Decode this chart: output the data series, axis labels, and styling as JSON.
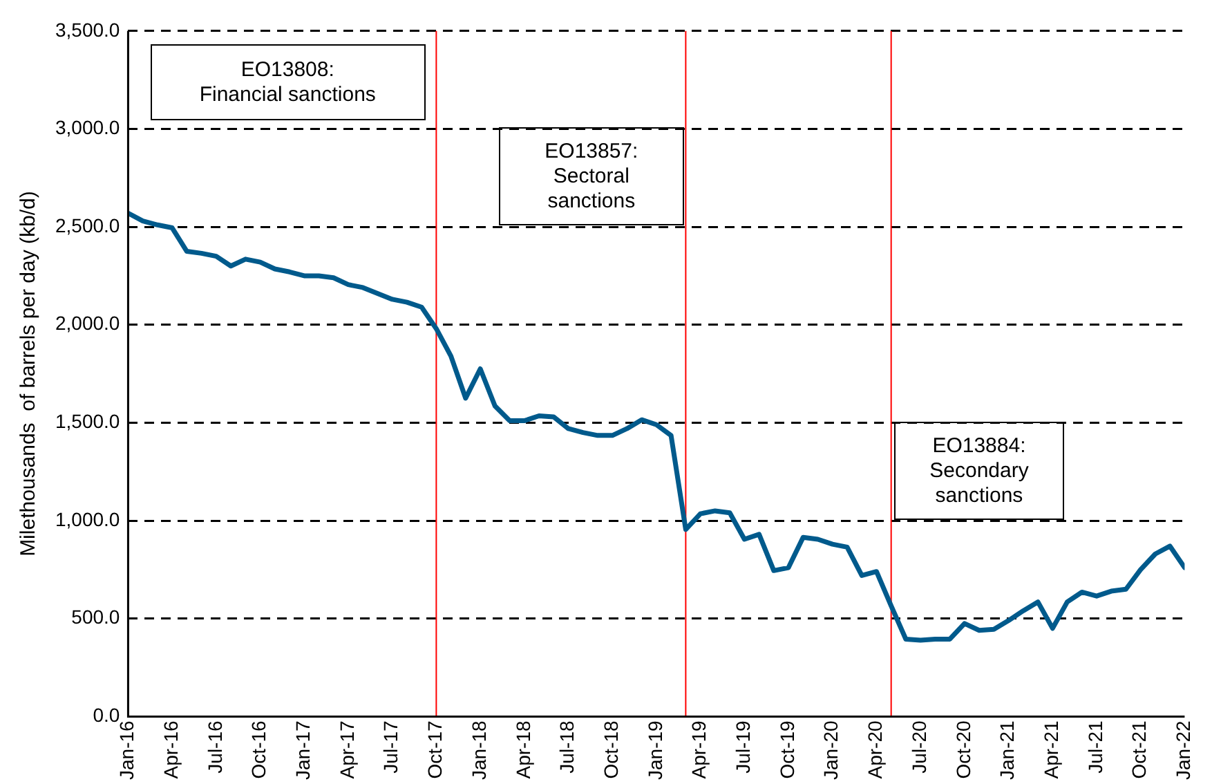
{
  "chart_data": {
    "type": "line",
    "ylabel": "Milethousands  of barrels per day (kb/d)",
    "x": [
      "2016-01",
      "2016-02",
      "2016-03",
      "2016-04",
      "2016-05",
      "2016-06",
      "2016-07",
      "2016-08",
      "2016-09",
      "2016-10",
      "2016-11",
      "2016-12",
      "2017-01",
      "2017-02",
      "2017-03",
      "2017-04",
      "2017-05",
      "2017-06",
      "2017-07",
      "2017-08",
      "2017-09",
      "2017-10",
      "2017-11",
      "2017-12",
      "2018-01",
      "2018-02",
      "2018-03",
      "2018-04",
      "2018-05",
      "2018-06",
      "2018-07",
      "2018-08",
      "2018-09",
      "2018-10",
      "2018-11",
      "2018-12",
      "2019-01",
      "2019-02",
      "2019-03",
      "2019-04",
      "2019-05",
      "2019-06",
      "2019-07",
      "2019-08",
      "2019-09",
      "2019-10",
      "2019-11",
      "2019-12",
      "2020-01",
      "2020-02",
      "2020-03",
      "2020-04",
      "2020-05",
      "2020-06",
      "2020-07",
      "2020-08",
      "2020-09",
      "2020-10",
      "2020-11",
      "2020-12",
      "2021-01",
      "2021-02",
      "2021-03",
      "2021-04",
      "2021-05",
      "2021-06",
      "2021-07",
      "2021-08",
      "2021-09",
      "2021-10",
      "2021-11",
      "2021-12",
      "2022-01"
    ],
    "series": [
      {
        "color": "#005a8c",
        "values": [
          2570,
          2530,
          2510,
          2495,
          2375,
          2365,
          2350,
          2300,
          2335,
          2320,
          2285,
          2270,
          2250,
          2250,
          2240,
          2205,
          2190,
          2160,
          2130,
          2115,
          2090,
          1980,
          1840,
          1625,
          1775,
          1585,
          1510,
          1510,
          1535,
          1530,
          1470,
          1450,
          1435,
          1435,
          1470,
          1515,
          1490,
          1435,
          955,
          1035,
          1050,
          1040,
          905,
          930,
          745,
          760,
          915,
          905,
          880,
          865,
          720,
          740,
          565,
          395,
          390,
          395,
          395,
          475,
          440,
          445,
          490,
          540,
          585,
          450,
          585,
          635,
          615,
          640,
          650,
          750,
          830,
          870,
          760
        ]
      }
    ],
    "xlim": [
      "2016-01",
      "2022-01"
    ],
    "xticks": [
      {
        "value": "2016-01",
        "label": "Jan-16"
      },
      {
        "value": "2016-04",
        "label": "Apr-16"
      },
      {
        "value": "2016-07",
        "label": "Jul-16"
      },
      {
        "value": "2016-10",
        "label": "Oct-16"
      },
      {
        "value": "2017-01",
        "label": "Jan-17"
      },
      {
        "value": "2017-04",
        "label": "Apr-17"
      },
      {
        "value": "2017-07",
        "label": "Jul-17"
      },
      {
        "value": "2017-10",
        "label": "Oct-17"
      },
      {
        "value": "2018-01",
        "label": "Jan-18"
      },
      {
        "value": "2018-04",
        "label": "Apr-18"
      },
      {
        "value": "2018-07",
        "label": "Jul-18"
      },
      {
        "value": "2018-10",
        "label": "Oct-18"
      },
      {
        "value": "2019-01",
        "label": "Jan-19"
      },
      {
        "value": "2019-04",
        "label": "Apr-19"
      },
      {
        "value": "2019-07",
        "label": "Jul-19"
      },
      {
        "value": "2019-10",
        "label": "Oct-19"
      },
      {
        "value": "2020-01",
        "label": "Jan-20"
      },
      {
        "value": "2020-04",
        "label": "Apr-20"
      },
      {
        "value": "2020-07",
        "label": "Jul-20"
      },
      {
        "value": "2020-10",
        "label": "Oct-20"
      },
      {
        "value": "2021-01",
        "label": "Jan-21"
      },
      {
        "value": "2021-04",
        "label": "Apr-21"
      },
      {
        "value": "2021-07",
        "label": "Jul-21"
      },
      {
        "value": "2021-10",
        "label": "Oct-21"
      },
      {
        "value": "2022-01",
        "label": "Jan-22"
      }
    ],
    "ylim": [
      0,
      3500
    ],
    "yticks": [
      {
        "value": 0,
        "label": "0.0"
      },
      {
        "value": 500,
        "label": "500.0"
      },
      {
        "value": 1000,
        "label": "1,000.0"
      },
      {
        "value": 1500,
        "label": "1,500.0"
      },
      {
        "value": 2000,
        "label": "2,000.0"
      },
      {
        "value": 2500,
        "label": "2,500.0"
      },
      {
        "value": 3000,
        "label": "3,000.0"
      },
      {
        "value": 3500,
        "label": "3,500.0"
      }
    ],
    "grid": "y",
    "legend": false,
    "marker": "none",
    "line_style": "solid",
    "ref_lines": [
      {
        "axis": "x",
        "value": "2017-10",
        "color": "#ff0000"
      },
      {
        "axis": "x",
        "value": "2019-03",
        "color": "#ff0000"
      },
      {
        "axis": "x",
        "value": "2020-05",
        "color": "#ff0000"
      }
    ],
    "annotations": [
      "EO13808:\nFinancial sanctions",
      "EO13857:\nSectoral\nsanctions",
      "EO13884:\nSecondary\nsanctions"
    ]
  }
}
